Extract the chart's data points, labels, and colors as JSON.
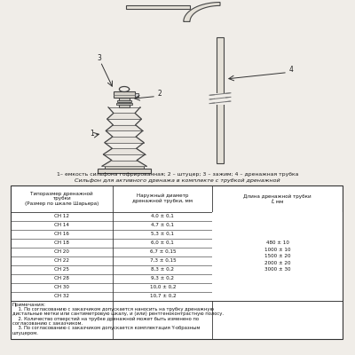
{
  "title_legend": "1– емкость сильфона гофрированная; 2 – штуцер; 3 – зажим; 4 – дренажная трубка",
  "title_table": "Сильфон для активного дренажа в комплекте с трубкой дренажной",
  "col_headers": [
    "Типоразмер дренажной\nтрубки\n(Размер по шкале Шарьера)",
    "Наружный диаметр\nдренажной трубки, мм",
    "Длина дренажной трубки\nℓ, мм"
  ],
  "rows": [
    [
      "СН 12",
      "4,0 ± 0,1",
      ""
    ],
    [
      "СН 14",
      "4,7 ± 0,1",
      ""
    ],
    [
      "СН 16",
      "5,3 ± 0,1",
      "480 ± 10"
    ],
    [
      "СН 18",
      "6,0 ± 0,1",
      "1000 ± 10"
    ],
    [
      "СН 20",
      "6,7 ± 0,15",
      "1500 ± 20"
    ],
    [
      "СН 22",
      "7,3 ± 0,15",
      "2000 ± 20"
    ],
    [
      "СН 25",
      "8,3 ± 0,2",
      "3000 ± 30"
    ],
    [
      "СН 28",
      "9,3 ± 0,2",
      ""
    ],
    [
      "СН 30",
      "10,0 ± 0,2",
      ""
    ],
    [
      "СН 32",
      "10,7 ± 0,2",
      ""
    ]
  ],
  "notes_title": "Примечания:",
  "note1_line1": "    1. По согласованию с заказчиком допускается наносить на трубку дренажную",
  "note1_line2": "дистальные метки или сантиметровую шкалу, и (или) рентгеноконтрастную полосу.",
  "note2_line1": "    2. Количество отверстий на трубке дренажной может быть изменено по",
  "note2_line2": "согласованию с заказчиком.",
  "note3_line1": "    3. По согласованию с заказчиком допускается комплектация Y-образным",
  "note3_line2": "штуцером.",
  "lengths": [
    "480 ± 10",
    "1000 ± 10",
    "1500 ± 20",
    "2000 ± 20",
    "3000 ± 30"
  ],
  "fig_bg": "#f0ede8"
}
